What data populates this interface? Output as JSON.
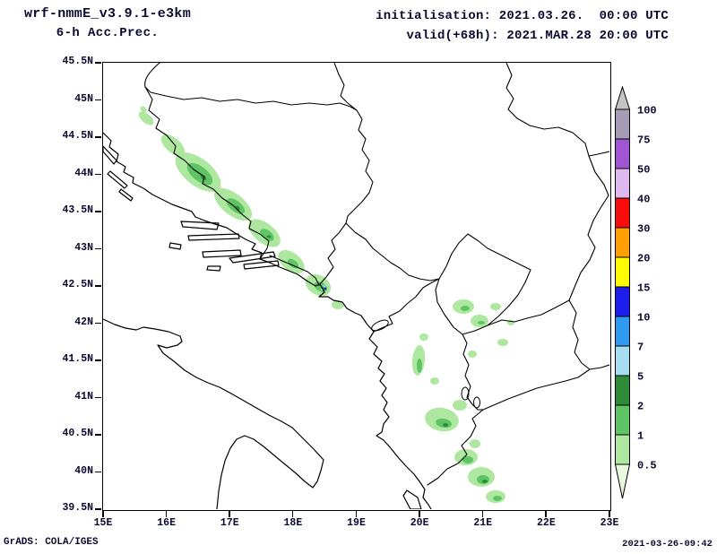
{
  "header": {
    "model": "wrf-nmmE_v3.9.1-e3km",
    "product": "6-h Acc.Prec.",
    "init_label": "initialisation: 2021.03.26.  00:00 UTC",
    "valid_label": "valid(+68h): 2021.MAR.28 20:00 UTC"
  },
  "axes": {
    "lat_ticks": [
      "45.5N",
      "45N",
      "44.5N",
      "44N",
      "43.5N",
      "43N",
      "42.5N",
      "42N",
      "41.5N",
      "41N",
      "40.5N",
      "40N",
      "39.5N"
    ],
    "lon_ticks": [
      "15E",
      "16E",
      "17E",
      "18E",
      "19E",
      "20E",
      "21E",
      "22E",
      "23E"
    ]
  },
  "colorbar": {
    "labels": [
      "100",
      "75",
      "50",
      "40",
      "30",
      "20",
      "15",
      "10",
      "7",
      "5",
      "2",
      "1",
      "0.5"
    ],
    "segments": [
      {
        "range": ">100",
        "color": "#c4c4c4"
      },
      {
        "range": "75-100",
        "color": "#a79cb6"
      },
      {
        "range": "50-75",
        "color": "#a055d2"
      },
      {
        "range": "40-50",
        "color": "#dfb8ef"
      },
      {
        "range": "30-40",
        "color": "#f80c0c"
      },
      {
        "range": "20-30",
        "color": "#ff9f00"
      },
      {
        "range": "15-20",
        "color": "#fdfd00"
      },
      {
        "range": "10-15",
        "color": "#1c1cec"
      },
      {
        "range": "7-10",
        "color": "#2f9bf0"
      },
      {
        "range": "5-7",
        "color": "#a6ddf0"
      },
      {
        "range": "2-5",
        "color": "#2e8c38"
      },
      {
        "range": "1-2",
        "color": "#5fc463"
      },
      {
        "range": "0.5-1",
        "color": "#aee8a0"
      },
      {
        "range": "<0.5",
        "color": "#e9f9e0"
      }
    ]
  },
  "map_palette": {
    "precip_light": "#aee8a0",
    "precip_medium": "#5fc463",
    "precip_dark": "#2e8c38",
    "outline": "#000000"
  },
  "footer": {
    "credit": "GrADS: COLA/IGES",
    "timestamp": "2021-03-26-09:42"
  }
}
